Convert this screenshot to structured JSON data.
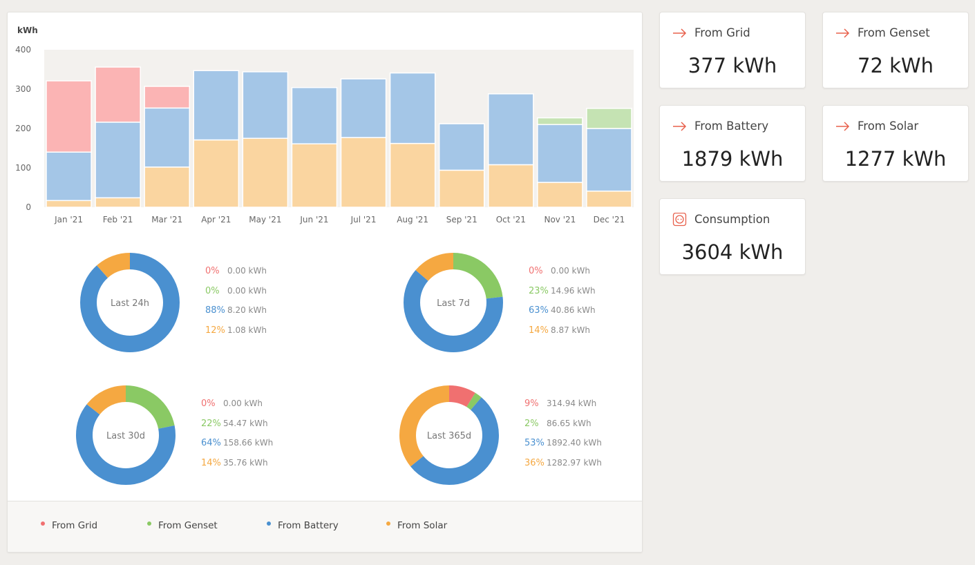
{
  "colors": {
    "grid": "#fbb4b4",
    "genset": "#c5e3b3",
    "battery": "#a4c6e7",
    "solar": "#fad5a0",
    "grid_strong": "#f07070",
    "genset_strong": "#8ac964",
    "battery_strong": "#4a90d0",
    "solar_strong": "#f5a841",
    "plot_bg": "#f3f1ee"
  },
  "chart_data": [
    {
      "type": "bar",
      "stacked": true,
      "ylabel": "kWh",
      "ylim": [
        0,
        400
      ],
      "yticks": [
        "0",
        "100",
        "200",
        "300",
        "400"
      ],
      "categories": [
        "Jan '21",
        "Feb '21",
        "Mar '21",
        "Apr '21",
        "May '21",
        "Jun '21",
        "Jul '21",
        "Aug '21",
        "Sep '21",
        "Oct '21",
        "Nov '21",
        "Dec '21"
      ],
      "series": [
        {
          "name": "From Solar",
          "values": [
            17,
            24,
            102,
            171,
            175,
            161,
            177,
            162,
            94,
            108,
            63,
            41
          ]
        },
        {
          "name": "From Battery",
          "values": [
            123,
            192,
            150,
            176,
            169,
            143,
            149,
            179,
            118,
            180,
            147,
            159
          ]
        },
        {
          "name": "From Grid",
          "values": [
            181,
            140,
            55,
            0,
            0,
            0,
            0,
            0,
            0,
            0,
            0,
            0
          ]
        },
        {
          "name": "From Genset",
          "values": [
            0,
            0,
            0,
            0,
            0,
            0,
            0,
            0,
            0,
            0,
            17,
            51
          ]
        }
      ],
      "grid": false,
      "legend": "bottom"
    },
    {
      "type": "pie",
      "label": "Last 24h",
      "slices": [
        {
          "name": "From Grid",
          "pct": "0%",
          "value": 0,
          "value_text": "0.00 kWh"
        },
        {
          "name": "From Genset",
          "pct": "0%",
          "value": 0,
          "value_text": "0.00 kWh"
        },
        {
          "name": "From Battery",
          "pct": "88%",
          "value": 8.2,
          "value_text": "8.20 kWh"
        },
        {
          "name": "From Solar",
          "pct": "12%",
          "value": 1.08,
          "value_text": "1.08 kWh"
        }
      ]
    },
    {
      "type": "pie",
      "label": "Last 7d",
      "slices": [
        {
          "name": "From Grid",
          "pct": "0%",
          "value": 0,
          "value_text": "0.00 kWh"
        },
        {
          "name": "From Genset",
          "pct": "23%",
          "value": 14.96,
          "value_text": "14.96 kWh"
        },
        {
          "name": "From Battery",
          "pct": "63%",
          "value": 40.86,
          "value_text": "40.86 kWh"
        },
        {
          "name": "From Solar",
          "pct": "14%",
          "value": 8.87,
          "value_text": "8.87 kWh"
        }
      ]
    },
    {
      "type": "pie",
      "label": "Last 30d",
      "slices": [
        {
          "name": "From Grid",
          "pct": "0%",
          "value": 0,
          "value_text": "0.00 kWh"
        },
        {
          "name": "From Genset",
          "pct": "22%",
          "value": 54.47,
          "value_text": "54.47 kWh"
        },
        {
          "name": "From Battery",
          "pct": "64%",
          "value": 158.66,
          "value_text": "158.66 kWh"
        },
        {
          "name": "From Solar",
          "pct": "14%",
          "value": 35.76,
          "value_text": "35.76 kWh"
        }
      ]
    },
    {
      "type": "pie",
      "label": "Last 365d",
      "slices": [
        {
          "name": "From Grid",
          "pct": "9%",
          "value": 314.94,
          "value_text": "314.94 kWh"
        },
        {
          "name": "From Genset",
          "pct": "2%",
          "value": 86.65,
          "value_text": "86.65 kWh"
        },
        {
          "name": "From Battery",
          "pct": "53%",
          "value": 1892.4,
          "value_text": "1892.40 kWh"
        },
        {
          "name": "From Solar",
          "pct": "36%",
          "value": 1282.97,
          "value_text": "1282.97 kWh"
        }
      ]
    }
  ],
  "legend": [
    {
      "name": "From Grid"
    },
    {
      "name": "From Genset"
    },
    {
      "name": "From Battery"
    },
    {
      "name": "From Solar"
    }
  ],
  "cards": [
    {
      "title": "From Grid",
      "value": "377 kWh",
      "icon": "arrow-right-icon"
    },
    {
      "title": "From Genset",
      "value": "72 kWh",
      "icon": "arrow-right-icon"
    },
    {
      "title": "From Battery",
      "value": "1879 kWh",
      "icon": "arrow-right-icon"
    },
    {
      "title": "From Solar",
      "value": "1277 kWh",
      "icon": "arrow-right-icon"
    },
    {
      "title": "Consumption",
      "value": "3604 kWh",
      "icon": "power-socket-icon"
    }
  ]
}
